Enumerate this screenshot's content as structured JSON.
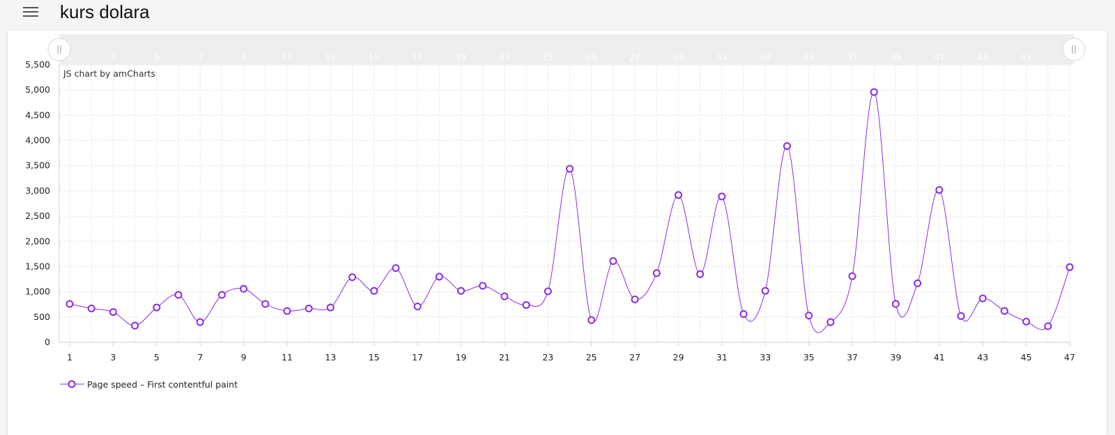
{
  "header": {
    "title": "kurs dolara",
    "menu_icon": "hamburger-menu-icon"
  },
  "chart_credit": "JS chart by amCharts",
  "colors": {
    "series": "#8a2be2",
    "grid": "#e6e6e6",
    "scrollbar": "#eeeeee"
  },
  "chart_data": {
    "type": "line",
    "title": "",
    "xlabel": "",
    "ylabel": "",
    "smoothed": true,
    "bullets": "circle",
    "grid": true,
    "legend": "bottom-left",
    "scrollbar": "top",
    "x": [
      1,
      2,
      3,
      4,
      5,
      6,
      7,
      8,
      9,
      10,
      11,
      12,
      13,
      14,
      15,
      16,
      17,
      18,
      19,
      20,
      21,
      22,
      23,
      24,
      25,
      26,
      27,
      28,
      29,
      30,
      31,
      32,
      33,
      34,
      35,
      36,
      37,
      38,
      39,
      40,
      41,
      42,
      43,
      44,
      45,
      46,
      47
    ],
    "x_tick_labels": [
      "1",
      "3",
      "5",
      "7",
      "9",
      "11",
      "13",
      "15",
      "17",
      "19",
      "21",
      "23",
      "25",
      "27",
      "29",
      "31",
      "33",
      "35",
      "37",
      "39",
      "41",
      "43",
      "45",
      "47"
    ],
    "scrollbar_tick_labels": [
      "1",
      "3",
      "5",
      "7",
      "9",
      "11",
      "13",
      "15",
      "17",
      "19",
      "21",
      "23",
      "25",
      "27",
      "29",
      "31",
      "33",
      "35",
      "37",
      "39",
      "41",
      "43",
      "45",
      "47"
    ],
    "y_tick_labels": [
      "0",
      "500",
      "1,000",
      "1,500",
      "2,000",
      "2,500",
      "3,000",
      "3,500",
      "4,000",
      "4,500",
      "5,000",
      "5,500"
    ],
    "ylim": [
      0,
      5500
    ],
    "series": [
      {
        "name": "Page speed – First contentful paint",
        "values": [
          760,
          670,
          600,
          330,
          690,
          940,
          400,
          940,
          1060,
          760,
          620,
          670,
          690,
          1290,
          1020,
          1470,
          710,
          1300,
          1020,
          1120,
          910,
          740,
          1010,
          3440,
          440,
          1610,
          850,
          1370,
          2920,
          1350,
          2890,
          560,
          1020,
          3890,
          530,
          400,
          1310,
          4960,
          760,
          1170,
          3020,
          520,
          870,
          620,
          410,
          320,
          1490
        ]
      }
    ]
  }
}
